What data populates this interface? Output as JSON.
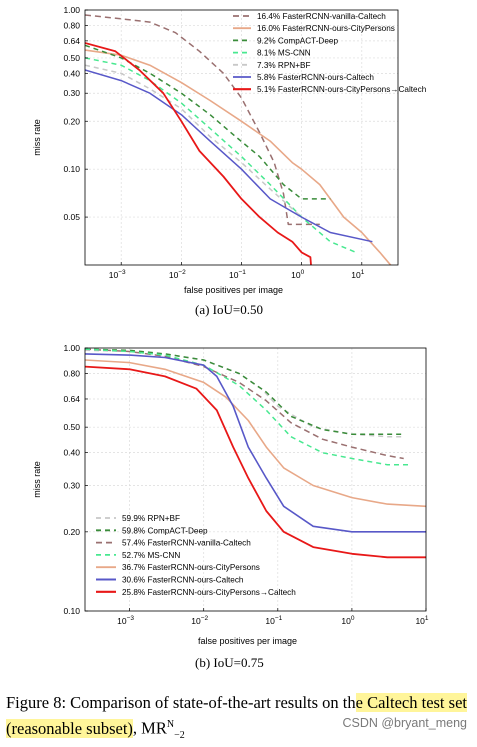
{
  "chart_data": [
    {
      "type": "line",
      "title": "",
      "xlabel": "false positives per image",
      "ylabel": "miss rate",
      "x_scale": "log",
      "y_scale": "log",
      "xlim": [
        0.00025,
        40
      ],
      "ylim": [
        0.025,
        1.0
      ],
      "x_ticks": [
        {
          "v": 0.001,
          "base": "10",
          "exp": "−3"
        },
        {
          "v": 0.01,
          "base": "10",
          "exp": "−2"
        },
        {
          "v": 0.1,
          "base": "10",
          "exp": "−1"
        },
        {
          "v": 1,
          "base": "10",
          "exp": "0"
        },
        {
          "v": 10,
          "base": "10",
          "exp": "1"
        }
      ],
      "y_ticks": [
        {
          "v": 1.0,
          "label": "1.00"
        },
        {
          "v": 0.8,
          "label": "0.80"
        },
        {
          "v": 0.64,
          "label": "0.64"
        },
        {
          "v": 0.5,
          "label": "0.50"
        },
        {
          "v": 0.4,
          "label": "0.40"
        },
        {
          "v": 0.3,
          "label": "0.30"
        },
        {
          "v": 0.2,
          "label": "0.20"
        },
        {
          "v": 0.1,
          "label": "0.10"
        },
        {
          "v": 0.05,
          "label": "0.05"
        }
      ],
      "grid": true,
      "legend_position": "top-right",
      "series": [
        {
          "name": "16.4% FasterRCNN-vanilla-Caltech",
          "color": "#9a7070",
          "dash": "6,4",
          "width": 1.5,
          "points": [
            [
              0.00025,
              0.93
            ],
            [
              0.001,
              0.88
            ],
            [
              0.003,
              0.84
            ],
            [
              0.008,
              0.72
            ],
            [
              0.02,
              0.55
            ],
            [
              0.05,
              0.4
            ],
            [
              0.1,
              0.28
            ],
            [
              0.2,
              0.17
            ],
            [
              0.35,
              0.11
            ],
            [
              0.5,
              0.07
            ],
            [
              0.6,
              0.045
            ],
            [
              0.9,
              0.045
            ],
            [
              2,
              0.045
            ]
          ]
        },
        {
          "name": "16.0% FasterRCNN-ours-CityPersons",
          "color": "#e8a888",
          "dash": "",
          "width": 1.6,
          "points": [
            [
              0.00025,
              0.56
            ],
            [
              0.001,
              0.52
            ],
            [
              0.003,
              0.45
            ],
            [
              0.01,
              0.35
            ],
            [
              0.03,
              0.27
            ],
            [
              0.1,
              0.2
            ],
            [
              0.3,
              0.15
            ],
            [
              0.7,
              0.11
            ],
            [
              1,
              0.1
            ],
            [
              2,
              0.08
            ],
            [
              3,
              0.065
            ],
            [
              5,
              0.05
            ],
            [
              10,
              0.04
            ],
            [
              20,
              0.03
            ],
            [
              40,
              0.022
            ]
          ]
        },
        {
          "name": "9.2% CompACT-Deep",
          "color": "#3a8c3a",
          "dash": "5,4",
          "width": 1.5,
          "points": [
            [
              0.00025,
              0.6
            ],
            [
              0.001,
              0.5
            ],
            [
              0.003,
              0.4
            ],
            [
              0.01,
              0.3
            ],
            [
              0.03,
              0.22
            ],
            [
              0.08,
              0.16
            ],
            [
              0.2,
              0.12
            ],
            [
              0.5,
              0.08
            ],
            [
              1,
              0.065
            ],
            [
              3,
              0.065
            ]
          ]
        },
        {
          "name": "8.1% MS-CNN",
          "color": "#48e890",
          "dash": "5,4",
          "width": 1.5,
          "points": [
            [
              0.00025,
              0.5
            ],
            [
              0.001,
              0.45
            ],
            [
              0.003,
              0.36
            ],
            [
              0.01,
              0.26
            ],
            [
              0.03,
              0.18
            ],
            [
              0.1,
              0.12
            ],
            [
              0.3,
              0.08
            ],
            [
              1,
              0.05
            ],
            [
              3,
              0.035
            ],
            [
              8,
              0.03
            ]
          ]
        },
        {
          "name": "7.3% RPN+BF",
          "color": "#c8c8c8",
          "dash": "5,4",
          "width": 1.5,
          "points": [
            [
              0.00025,
              0.45
            ],
            [
              0.001,
              0.4
            ],
            [
              0.003,
              0.32
            ],
            [
              0.01,
              0.24
            ],
            [
              0.03,
              0.16
            ],
            [
              0.1,
              0.11
            ],
            [
              0.3,
              0.075
            ],
            [
              1,
              0.05
            ],
            [
              3,
              0.04
            ]
          ]
        },
        {
          "name": "5.8% FasterRCNN-ours-Caltech",
          "color": "#5858c8",
          "dash": "",
          "width": 1.5,
          "points": [
            [
              0.00025,
              0.42
            ],
            [
              0.001,
              0.36
            ],
            [
              0.003,
              0.3
            ],
            [
              0.01,
              0.22
            ],
            [
              0.03,
              0.15
            ],
            [
              0.1,
              0.1
            ],
            [
              0.3,
              0.065
            ],
            [
              1,
              0.05
            ],
            [
              3,
              0.04
            ],
            [
              15,
              0.035
            ]
          ]
        },
        {
          "name": "5.1% FasterRCNN-ours-CityPersons→Caltech",
          "color": "#e81818",
          "dash": "",
          "width": 1.8,
          "points": [
            [
              0.00025,
              0.62
            ],
            [
              0.0008,
              0.55
            ],
            [
              0.002,
              0.42
            ],
            [
              0.005,
              0.3
            ],
            [
              0.01,
              0.2
            ],
            [
              0.02,
              0.13
            ],
            [
              0.05,
              0.09
            ],
            [
              0.1,
              0.065
            ],
            [
              0.2,
              0.05
            ],
            [
              0.4,
              0.04
            ],
            [
              0.7,
              0.035
            ],
            [
              1,
              0.03
            ],
            [
              1.4,
              0.028
            ],
            [
              1.5,
              0.02
            ]
          ]
        }
      ]
    },
    {
      "type": "line",
      "title": "",
      "xlabel": "false positives per image",
      "ylabel": "miss rate",
      "x_scale": "log",
      "y_scale": "log",
      "xlim": [
        0.00025,
        10
      ],
      "ylim": [
        0.1,
        1.0
      ],
      "x_ticks": [
        {
          "v": 0.001,
          "base": "10",
          "exp": "−3"
        },
        {
          "v": 0.01,
          "base": "10",
          "exp": "−2"
        },
        {
          "v": 0.1,
          "base": "10",
          "exp": "−1"
        },
        {
          "v": 1,
          "base": "10",
          "exp": "0"
        },
        {
          "v": 10,
          "base": "10",
          "exp": "1"
        }
      ],
      "y_ticks": [
        {
          "v": 1.0,
          "label": "1.00"
        },
        {
          "v": 0.8,
          "label": "0.80"
        },
        {
          "v": 0.64,
          "label": "0.64"
        },
        {
          "v": 0.5,
          "label": "0.50"
        },
        {
          "v": 0.4,
          "label": "0.40"
        },
        {
          "v": 0.3,
          "label": "0.30"
        },
        {
          "v": 0.2,
          "label": "0.20"
        },
        {
          "v": 0.1,
          "label": "0.10"
        }
      ],
      "grid": true,
      "legend_position": "bottom-left",
      "series": [
        {
          "name": "59.9% RPN+BF",
          "color": "#c8c8c8",
          "dash": "5,4",
          "width": 1.5,
          "points": [
            [
              0.00025,
              0.98
            ],
            [
              0.001,
              0.97
            ],
            [
              0.003,
              0.95
            ],
            [
              0.01,
              0.9
            ],
            [
              0.03,
              0.8
            ],
            [
              0.06,
              0.7
            ],
            [
              0.1,
              0.6
            ],
            [
              0.3,
              0.5
            ],
            [
              1,
              0.47
            ],
            [
              3,
              0.46
            ],
            [
              5,
              0.46
            ]
          ]
        },
        {
          "name": "59.8% CompACT-Deep",
          "color": "#3a8c3a",
          "dash": "5,4",
          "width": 1.5,
          "points": [
            [
              0.00025,
              0.99
            ],
            [
              0.001,
              0.98
            ],
            [
              0.003,
              0.95
            ],
            [
              0.01,
              0.9
            ],
            [
              0.03,
              0.8
            ],
            [
              0.07,
              0.68
            ],
            [
              0.15,
              0.55
            ],
            [
              0.4,
              0.49
            ],
            [
              1,
              0.47
            ],
            [
              2,
              0.47
            ],
            [
              5,
              0.47
            ]
          ]
        },
        {
          "name": "57.4% FasterRCNN-vanilla-Caltech",
          "color": "#9a7070",
          "dash": "6,4",
          "width": 1.5,
          "points": [
            [
              0.00025,
              0.99
            ],
            [
              0.001,
              0.97
            ],
            [
              0.003,
              0.93
            ],
            [
              0.01,
              0.85
            ],
            [
              0.03,
              0.74
            ],
            [
              0.07,
              0.63
            ],
            [
              0.15,
              0.52
            ],
            [
              0.4,
              0.45
            ],
            [
              1,
              0.42
            ],
            [
              3,
              0.39
            ],
            [
              5,
              0.38
            ]
          ]
        },
        {
          "name": "52.7% MS-CNN",
          "color": "#48e890",
          "dash": "5,4",
          "width": 1.5,
          "points": [
            [
              0.00025,
              0.99
            ],
            [
              0.001,
              0.97
            ],
            [
              0.003,
              0.94
            ],
            [
              0.01,
              0.86
            ],
            [
              0.03,
              0.72
            ],
            [
              0.07,
              0.58
            ],
            [
              0.15,
              0.46
            ],
            [
              0.4,
              0.4
            ],
            [
              1,
              0.38
            ],
            [
              3,
              0.36
            ],
            [
              6,
              0.36
            ]
          ]
        },
        {
          "name": "36.7% FasterRCNN-ours-CityPersons",
          "color": "#e8a888",
          "dash": "",
          "width": 1.6,
          "points": [
            [
              0.00025,
              0.9
            ],
            [
              0.001,
              0.88
            ],
            [
              0.003,
              0.83
            ],
            [
              0.01,
              0.74
            ],
            [
              0.02,
              0.65
            ],
            [
              0.04,
              0.53
            ],
            [
              0.07,
              0.42
            ],
            [
              0.12,
              0.35
            ],
            [
              0.3,
              0.3
            ],
            [
              1,
              0.27
            ],
            [
              3,
              0.255
            ],
            [
              10,
              0.25
            ]
          ]
        },
        {
          "name": "30.6% FasterRCNN-ours-Caltech",
          "color": "#5858c8",
          "dash": "",
          "width": 1.6,
          "points": [
            [
              0.00025,
              0.95
            ],
            [
              0.001,
              0.94
            ],
            [
              0.003,
              0.92
            ],
            [
              0.01,
              0.86
            ],
            [
              0.015,
              0.78
            ],
            [
              0.025,
              0.6
            ],
            [
              0.04,
              0.42
            ],
            [
              0.07,
              0.32
            ],
            [
              0.12,
              0.25
            ],
            [
              0.3,
              0.21
            ],
            [
              1,
              0.2
            ],
            [
              3,
              0.2
            ],
            [
              10,
              0.2
            ]
          ]
        },
        {
          "name": "25.8% FasterRCNN-ours-CityPersons→Caltech",
          "color": "#e81818",
          "dash": "",
          "width": 1.8,
          "points": [
            [
              0.00025,
              0.85
            ],
            [
              0.001,
              0.83
            ],
            [
              0.003,
              0.78
            ],
            [
              0.008,
              0.7
            ],
            [
              0.015,
              0.58
            ],
            [
              0.025,
              0.42
            ],
            [
              0.04,
              0.32
            ],
            [
              0.07,
              0.24
            ],
            [
              0.12,
              0.2
            ],
            [
              0.3,
              0.175
            ],
            [
              1,
              0.165
            ],
            [
              3,
              0.16
            ],
            [
              10,
              0.16
            ]
          ]
        }
      ]
    }
  ],
  "subcaptions": {
    "a": "(a) IoU=0.50",
    "b": "(b) IoU=0.75"
  },
  "caption": {
    "prefix": "Figure 8: Comparison of state-of-the-art results on th",
    "highlight": "e Caltech test set (reasonable subset)",
    "suffix": ", MR",
    "superscript": "N",
    "tail": "−2"
  },
  "watermark": "CSDN @bryant_meng"
}
